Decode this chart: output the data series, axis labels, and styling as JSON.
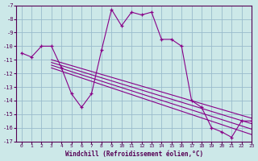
{
  "xlabel": "Windchill (Refroidissement éolien,°C)",
  "background_color": "#cce8e8",
  "grid_color": "#99bbcc",
  "line_color": "#880088",
  "xlim": [
    -0.5,
    23
  ],
  "ylim": [
    -17,
    -7
  ],
  "xticks": [
    0,
    1,
    2,
    3,
    4,
    5,
    6,
    7,
    8,
    9,
    10,
    11,
    12,
    13,
    14,
    15,
    16,
    17,
    18,
    19,
    20,
    21,
    22,
    23
  ],
  "yticks": [
    -7,
    -8,
    -9,
    -10,
    -11,
    -12,
    -13,
    -14,
    -15,
    -16,
    -17
  ],
  "main_x": [
    0,
    1,
    2,
    3,
    4,
    5,
    6,
    7,
    8,
    9,
    10,
    11,
    12,
    13,
    14,
    15,
    16,
    17,
    18,
    19,
    20,
    21,
    22,
    23
  ],
  "main_y": [
    -10.5,
    -10.8,
    -10.0,
    -10.0,
    -11.6,
    -13.5,
    -14.5,
    -13.5,
    -10.3,
    -7.3,
    -8.5,
    -7.5,
    -7.7,
    -7.5,
    -9.5,
    -9.5,
    -10.0,
    -14.0,
    -14.5,
    -16.0,
    -16.3,
    -16.7,
    -15.5,
    -15.5
  ],
  "trend_lines": [
    {
      "x": [
        3.0,
        23.0
      ],
      "y": [
        -11.0,
        -15.3
      ]
    },
    {
      "x": [
        3.0,
        23.0
      ],
      "y": [
        -11.2,
        -15.7
      ]
    },
    {
      "x": [
        3.0,
        23.0
      ],
      "y": [
        -11.4,
        -16.1
      ]
    },
    {
      "x": [
        3.0,
        23.0
      ],
      "y": [
        -11.6,
        -16.5
      ]
    }
  ]
}
